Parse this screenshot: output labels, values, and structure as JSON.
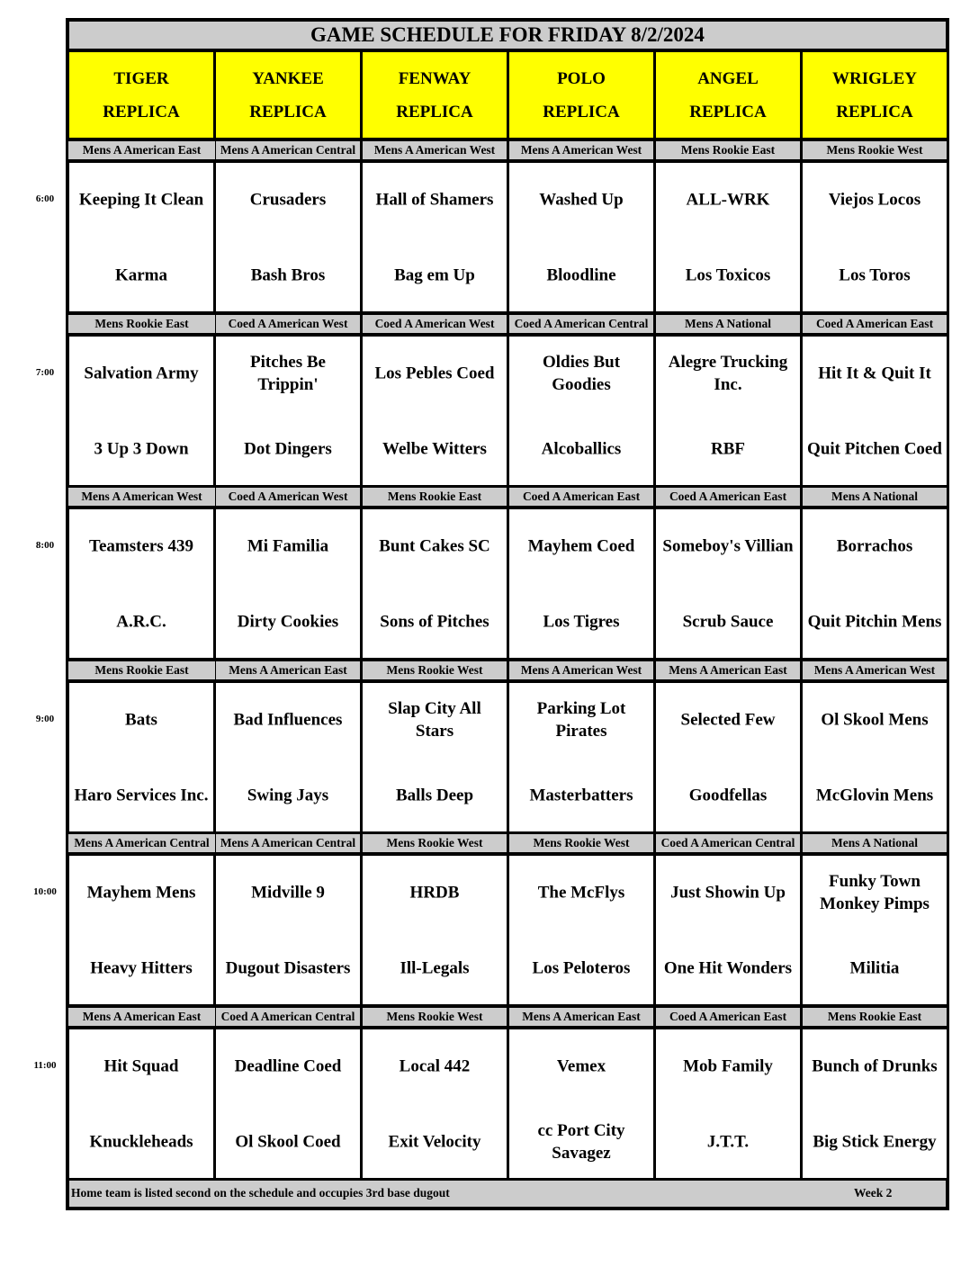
{
  "title": "GAME SCHEDULE FOR FRIDAY 8/2/2024",
  "fields": [
    [
      "TIGER",
      "REPLICA"
    ],
    [
      "YANKEE",
      "REPLICA"
    ],
    [
      "FENWAY",
      "REPLICA"
    ],
    [
      "POLO",
      "REPLICA"
    ],
    [
      "ANGEL",
      "REPLICA"
    ],
    [
      "WRIGLEY",
      "REPLICA"
    ]
  ],
  "slots": [
    {
      "time": "6:00",
      "games": [
        {
          "division": "Mens A American East",
          "away": "Keeping It Clean",
          "home": "Karma"
        },
        {
          "division": "Mens A American Central",
          "away": "Crusaders",
          "home": "Bash Bros"
        },
        {
          "division": "Mens A American West",
          "away": "Hall of Shamers",
          "home": "Bag em Up"
        },
        {
          "division": "Mens A American West",
          "away": "Washed Up",
          "home": "Bloodline"
        },
        {
          "division": "Mens Rookie East",
          "away": "ALL-WRK",
          "home": "Los Toxicos"
        },
        {
          "division": "Mens Rookie West",
          "away": "Viejos Locos",
          "home": "Los Toros"
        }
      ]
    },
    {
      "time": "7:00",
      "games": [
        {
          "division": "Mens Rookie East",
          "away": "Salvation Army",
          "home": "3 Up 3 Down"
        },
        {
          "division": "Coed A American West",
          "away": "Pitches Be\nTrippin'",
          "home": "Dot Dingers"
        },
        {
          "division": "Coed A American West",
          "away": "Los Pebles Coed",
          "home": "Welbe Witters"
        },
        {
          "division": "Coed A American Central",
          "away": "Oldies But\nGoodies",
          "home": "Alcoballics"
        },
        {
          "division": "Mens A National",
          "away": "Alegre Trucking\nInc.",
          "home": "RBF"
        },
        {
          "division": "Coed A American East",
          "away": "Hit It & Quit It",
          "home": "Quit Pitchen Coed"
        }
      ]
    },
    {
      "time": "8:00",
      "games": [
        {
          "division": "Mens A American West",
          "away": "Teamsters 439",
          "home": "A.R.C."
        },
        {
          "division": "Coed A American West",
          "away": "Mi Familia",
          "home": "Dirty Cookies"
        },
        {
          "division": "Mens Rookie East",
          "away": "Bunt Cakes SC",
          "home": "Sons of Pitches"
        },
        {
          "division": "Coed A American East",
          "away": "Mayhem Coed",
          "home": "Los Tigres"
        },
        {
          "division": "Coed A American East",
          "away": "Someboy's Villian",
          "home": "Scrub Sauce"
        },
        {
          "division": "Mens A National",
          "away": "Borrachos",
          "home": "Quit Pitchin Mens"
        }
      ]
    },
    {
      "time": "9:00",
      "games": [
        {
          "division": "Mens Rookie East",
          "away": "Bats",
          "home": "Haro Services Inc."
        },
        {
          "division": "Mens A American East",
          "away": "Bad Influences",
          "home": "Swing Jays"
        },
        {
          "division": "Mens Rookie West",
          "away": "Slap City All\nStars",
          "home": "Balls Deep"
        },
        {
          "division": "Mens A American West",
          "away": "Parking Lot\nPirates",
          "home": "Masterbatters"
        },
        {
          "division": "Mens A American East",
          "away": "Selected Few",
          "home": "Goodfellas"
        },
        {
          "division": "Mens A American West",
          "away": "Ol Skool Mens",
          "home": "McGlovin Mens"
        }
      ]
    },
    {
      "time": "10:00",
      "games": [
        {
          "division": "Mens A American Central",
          "away": "Mayhem Mens",
          "home": "Heavy Hitters"
        },
        {
          "division": "Mens A American Central",
          "away": "Midville 9",
          "home": "Dugout Disasters"
        },
        {
          "division": "Mens Rookie West",
          "away": "HRDB",
          "home": "Ill-Legals"
        },
        {
          "division": "Mens Rookie West",
          "away": "The McFlys",
          "home": "Los Peloteros"
        },
        {
          "division": "Coed A American Central",
          "away": "Just Showin Up",
          "home": "One Hit Wonders"
        },
        {
          "division": "Mens A National",
          "away": "Funky Town\nMonkey Pimps",
          "home": "Militia"
        }
      ]
    },
    {
      "time": "11:00",
      "games": [
        {
          "division": "Mens A American East",
          "away": "Hit Squad",
          "home": "Knuckleheads"
        },
        {
          "division": "Coed A American Central",
          "away": "Deadline Coed",
          "home": "Ol Skool Coed"
        },
        {
          "division": "Mens Rookie West",
          "away": "Local 442",
          "home": "Exit Velocity"
        },
        {
          "division": "Mens A American East",
          "away": "Vemex",
          "home": "cc Port City\nSavagez"
        },
        {
          "division": "Coed A American East",
          "away": "Mob Family",
          "home": "J.T.T."
        },
        {
          "division": "Mens Rookie East",
          "away": "Bunch of Drunks",
          "home": "Big Stick Energy"
        }
      ]
    }
  ],
  "footer": {
    "note": "Home team is listed second on the schedule and occupies 3rd base dugout",
    "week": "Week 2"
  },
  "colors": {
    "header_bg": "#ffff00",
    "band_bg": "#cccccc",
    "border": "#000000"
  }
}
